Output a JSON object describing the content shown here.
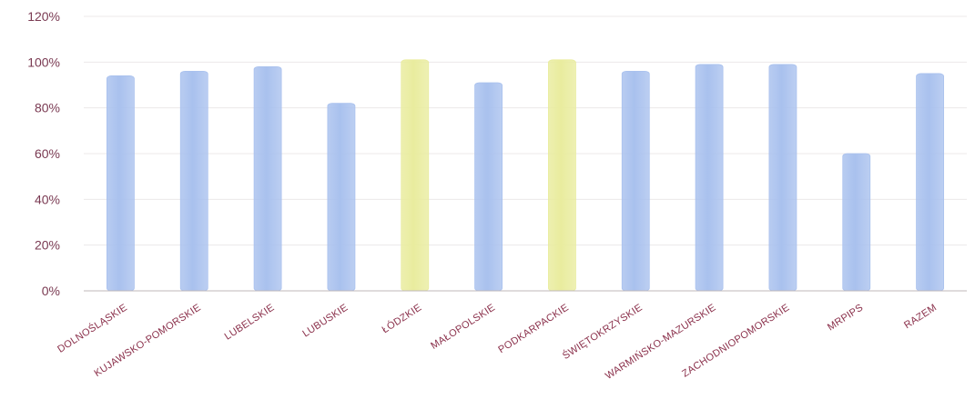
{
  "chart_data": {
    "type": "bar",
    "title": "",
    "xlabel": "",
    "ylabel": "",
    "ylim": [
      0,
      120
    ],
    "ytick_values": [
      0,
      20,
      40,
      60,
      80,
      100,
      120
    ],
    "ytick_labels": [
      "0%",
      "20%",
      "40%",
      "60%",
      "80%",
      "100%",
      "120%"
    ],
    "grid": true,
    "categories": [
      "DOLNOŚLĄSKIE",
      "KUJAWSKO-POMORSKIE",
      "LUBELSKIE",
      "LUBUSKIE",
      "ŁÓDZKIE",
      "MAŁOPOLSKIE",
      "PODKARPACKIE",
      "ŚWIĘTOKRZYSKIE",
      "WARMIŃSKO-MAZURSKIE",
      "ZACHODNIOPOMORSKIE",
      "MRPIPS",
      "RAZEM"
    ],
    "values": [
      94,
      96,
      98,
      82,
      101,
      91,
      101,
      96,
      99,
      99,
      60,
      95
    ],
    "colors": [
      "#a9c1ee",
      "#a9c1ee",
      "#a9c1ee",
      "#a9c1ee",
      "#e9ec9e",
      "#a9c1ee",
      "#e9ec9e",
      "#a9c1ee",
      "#a9c1ee",
      "#a9c1ee",
      "#a9c1ee",
      "#a9c1ee"
    ]
  }
}
